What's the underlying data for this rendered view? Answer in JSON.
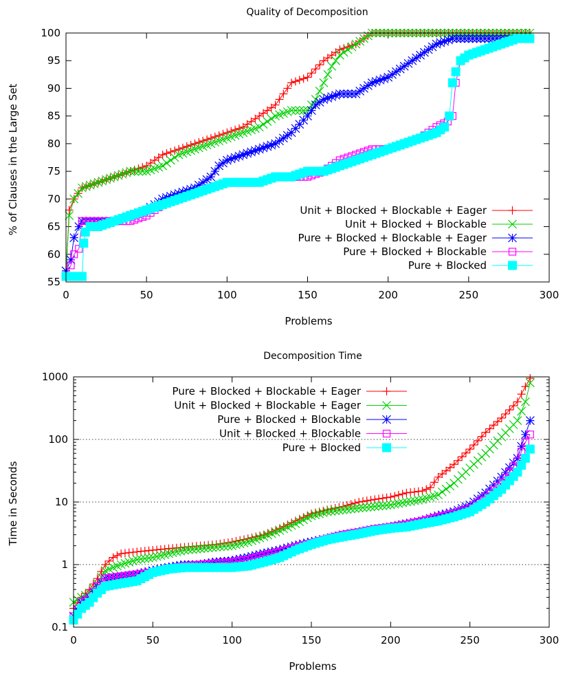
{
  "chart_data": [
    {
      "type": "line",
      "title": "Quality of Decomposition",
      "xlabel": "Problems",
      "ylabel": "% of Clauses in the Large Set",
      "xlim": [
        0,
        300
      ],
      "ylim": [
        55,
        100
      ],
      "yscale": "linear",
      "xticks": [
        0,
        50,
        100,
        150,
        200,
        250,
        300
      ],
      "yticks": [
        55,
        60,
        65,
        70,
        75,
        80,
        85,
        90,
        95,
        100
      ],
      "grid": false,
      "legend_position": "bottom-right",
      "series": [
        {
          "name": "Unit + Blocked + Blockable + Eager",
          "color": "#ff0000",
          "marker": "plus",
          "x": [
            0,
            2,
            5,
            10,
            20,
            30,
            40,
            50,
            60,
            70,
            80,
            90,
            100,
            110,
            120,
            130,
            140,
            150,
            160,
            170,
            180,
            190,
            200,
            220,
            240,
            260,
            280,
            288
          ],
          "y": [
            56,
            68,
            70,
            72,
            73,
            74,
            75,
            76,
            78,
            79,
            80,
            81,
            82,
            83,
            85,
            87,
            91,
            92,
            95,
            97,
            98,
            100,
            100,
            100,
            100,
            100,
            100,
            100
          ]
        },
        {
          "name": "Unit + Blocked + Blockable",
          "color": "#00d000",
          "marker": "x",
          "x": [
            0,
            2,
            5,
            10,
            20,
            30,
            40,
            50,
            60,
            70,
            80,
            90,
            100,
            110,
            120,
            130,
            140,
            150,
            155,
            160,
            165,
            170,
            180,
            190,
            200,
            220,
            240,
            260,
            280,
            288
          ],
          "y": [
            57,
            67,
            70,
            72,
            73,
            74,
            75,
            75,
            76,
            78,
            79,
            80,
            81,
            82,
            83,
            85,
            86,
            86,
            88,
            91,
            94,
            96,
            98,
            100,
            100,
            100,
            100,
            100,
            100,
            100
          ]
        },
        {
          "name": "Pure + Blocked + Blockable + Eager",
          "color": "#0000ff",
          "marker": "asterisk",
          "x": [
            0,
            3,
            5,
            8,
            10,
            20,
            30,
            40,
            50,
            60,
            70,
            80,
            90,
            95,
            100,
            110,
            120,
            130,
            140,
            150,
            155,
            160,
            170,
            180,
            190,
            200,
            210,
            220,
            230,
            240,
            250,
            260,
            270,
            280,
            288
          ],
          "y": [
            57,
            59,
            63,
            65,
            66,
            66,
            66,
            67,
            68,
            70,
            71,
            72,
            74,
            76,
            77,
            78,
            79,
            80,
            82,
            85,
            87,
            88,
            89,
            89,
            91,
            92,
            94,
            96,
            98,
            99,
            99,
            99,
            99,
            99,
            99
          ]
        },
        {
          "name": "Pure + Blocked + Blockable",
          "color": "#ff00ff",
          "marker": "square-open",
          "x": [
            0,
            3,
            5,
            8,
            10,
            20,
            30,
            40,
            50,
            60,
            70,
            80,
            90,
            100,
            110,
            120,
            130,
            140,
            150,
            160,
            170,
            180,
            190,
            200,
            210,
            220,
            230,
            237,
            240,
            242,
            245,
            250,
            260,
            270,
            280,
            288
          ],
          "y": [
            56,
            58,
            60,
            61,
            66,
            66,
            66,
            66,
            67,
            69,
            70,
            71,
            72,
            73,
            73,
            73,
            74,
            74,
            74,
            75,
            77,
            78,
            79,
            79,
            80,
            81,
            83,
            84,
            85,
            91,
            95,
            96,
            97,
            98,
            99,
            99
          ]
        },
        {
          "name": "Pure + Blocked",
          "color": "#00ffff",
          "marker": "square-filled",
          "x": [
            0,
            5,
            10,
            11,
            12,
            15,
            20,
            30,
            40,
            50,
            60,
            70,
            80,
            90,
            100,
            110,
            120,
            130,
            140,
            150,
            160,
            170,
            180,
            190,
            200,
            210,
            220,
            230,
            235,
            238,
            240,
            242,
            245,
            250,
            260,
            270,
            280,
            288
          ],
          "y": [
            56,
            56,
            56,
            62,
            64,
            65,
            65,
            66,
            67,
            68,
            69,
            70,
            71,
            72,
            73,
            73,
            73,
            74,
            74,
            75,
            75,
            76,
            77,
            78,
            79,
            80,
            81,
            82,
            83,
            85,
            91,
            93,
            95,
            96,
            97,
            98,
            99,
            99
          ]
        }
      ]
    },
    {
      "type": "line",
      "title": "Decomposition Time",
      "xlabel": "Problems",
      "ylabel": "Time in Seconds",
      "xlim": [
        0,
        300
      ],
      "ylim": [
        0.1,
        1000
      ],
      "yscale": "log",
      "xticks": [
        0,
        50,
        100,
        150,
        200,
        250,
        300
      ],
      "yticks": [
        0.1,
        1,
        10,
        100,
        1000
      ],
      "ytick_labels": [
        "0.1",
        "1",
        "10",
        "100",
        "1000"
      ],
      "grid": "horizontal dotted",
      "legend_position": "top-left",
      "series": [
        {
          "name": "Pure + Blocked + Blockable + Eager",
          "color": "#ff0000",
          "marker": "plus",
          "x": [
            0,
            5,
            10,
            15,
            20,
            25,
            30,
            40,
            50,
            60,
            70,
            80,
            90,
            100,
            110,
            120,
            130,
            140,
            150,
            160,
            170,
            180,
            190,
            200,
            210,
            220,
            225,
            230,
            240,
            250,
            260,
            270,
            280,
            285,
            288
          ],
          "y": [
            0.2,
            0.3,
            0.4,
            0.6,
            1.0,
            1.3,
            1.5,
            1.6,
            1.7,
            1.8,
            1.9,
            2.0,
            2.1,
            2.3,
            2.6,
            3.0,
            3.8,
            5.0,
            6.5,
            7.5,
            8.5,
            10,
            11,
            12,
            14,
            15,
            17,
            25,
            40,
            70,
            130,
            220,
            400,
            700,
            950
          ]
        },
        {
          "name": "Unit + Blocked + Blockable + Eager",
          "color": "#00d000",
          "marker": "x",
          "x": [
            0,
            5,
            10,
            15,
            20,
            25,
            30,
            40,
            50,
            60,
            70,
            80,
            90,
            100,
            110,
            120,
            130,
            140,
            150,
            160,
            170,
            180,
            190,
            200,
            210,
            220,
            230,
            240,
            250,
            260,
            270,
            280,
            285,
            288
          ],
          "y": [
            0.25,
            0.3,
            0.35,
            0.5,
            0.8,
            0.9,
            1.0,
            1.2,
            1.3,
            1.5,
            1.7,
            1.8,
            1.9,
            2.0,
            2.3,
            2.8,
            3.5,
            4.5,
            6.0,
            7.0,
            7.5,
            8.0,
            8.5,
            9.0,
            10,
            11,
            13,
            20,
            35,
            60,
            110,
            200,
            400,
            800
          ]
        },
        {
          "name": "Pure + Blocked + Blockable",
          "color": "#0000ff",
          "marker": "asterisk",
          "x": [
            0,
            5,
            10,
            15,
            20,
            30,
            40,
            50,
            60,
            70,
            80,
            90,
            100,
            110,
            120,
            130,
            140,
            150,
            160,
            170,
            180,
            190,
            200,
            210,
            220,
            230,
            240,
            250,
            260,
            270,
            280,
            285,
            288
          ],
          "y": [
            0.15,
            0.25,
            0.3,
            0.45,
            0.6,
            0.65,
            0.7,
            0.8,
            0.9,
            1.0,
            1.0,
            1.1,
            1.15,
            1.3,
            1.5,
            1.7,
            2.0,
            2.3,
            2.6,
            3.0,
            3.3,
            3.7,
            4.0,
            4.5,
            5.0,
            6.0,
            7.0,
            9.0,
            14,
            25,
            50,
            120,
            200
          ]
        },
        {
          "name": "Unit + Blocked + Blockable",
          "color": "#ff00ff",
          "marker": "square-open",
          "x": [
            0,
            5,
            10,
            15,
            20,
            30,
            40,
            50,
            60,
            70,
            80,
            90,
            100,
            110,
            120,
            130,
            140,
            150,
            160,
            170,
            180,
            190,
            200,
            210,
            220,
            230,
            240,
            250,
            260,
            270,
            280,
            285,
            288
          ],
          "y": [
            0.15,
            0.25,
            0.3,
            0.45,
            0.6,
            0.65,
            0.7,
            0.75,
            0.85,
            0.95,
            1.0,
            1.05,
            1.1,
            1.2,
            1.4,
            1.6,
            1.9,
            2.2,
            2.6,
            3.0,
            3.3,
            3.7,
            4.0,
            4.4,
            5.0,
            5.8,
            6.5,
            8.0,
            12,
            20,
            45,
            90,
            120
          ]
        },
        {
          "name": "Pure + Blocked",
          "color": "#00ffff",
          "marker": "square-filled",
          "x": [
            0,
            5,
            10,
            15,
            20,
            30,
            40,
            50,
            60,
            70,
            80,
            90,
            100,
            110,
            120,
            130,
            140,
            150,
            160,
            170,
            180,
            190,
            200,
            210,
            220,
            230,
            240,
            250,
            260,
            270,
            280,
            285,
            288
          ],
          "y": [
            0.13,
            0.2,
            0.25,
            0.35,
            0.45,
            0.5,
            0.55,
            0.75,
            0.85,
            0.9,
            0.9,
            0.9,
            0.9,
            0.95,
            1.1,
            1.3,
            1.7,
            2.1,
            2.5,
            2.8,
            3.1,
            3.5,
            3.8,
            4.0,
            4.5,
            5.0,
            5.8,
            7.0,
            10,
            16,
            30,
            50,
            70
          ]
        }
      ]
    }
  ]
}
